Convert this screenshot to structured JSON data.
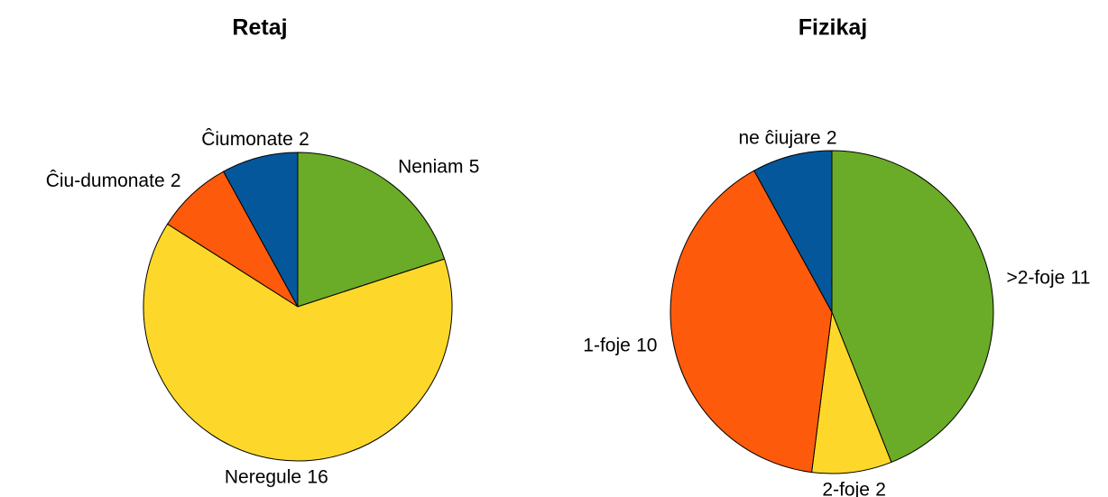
{
  "chart_data": [
    {
      "type": "pie",
      "title": "Retaj",
      "categories": [
        "Neniam",
        "Neregule",
        "Ĉiu-dumonate",
        "Ĉiumonate"
      ],
      "values": [
        5,
        16,
        2,
        2
      ],
      "colors": [
        "#6aab27",
        "#fdd82a",
        "#fe5a0c",
        "#05579b"
      ]
    },
    {
      "type": "pie",
      "title": "Fizikaj",
      "categories": [
        ">2-foje",
        "2-foje",
        "1-foje",
        "ne ĉiujare"
      ],
      "values": [
        11,
        2,
        10,
        2
      ],
      "colors": [
        "#6aab27",
        "#fdd82a",
        "#fe5a0c",
        "#05579b"
      ]
    }
  ]
}
